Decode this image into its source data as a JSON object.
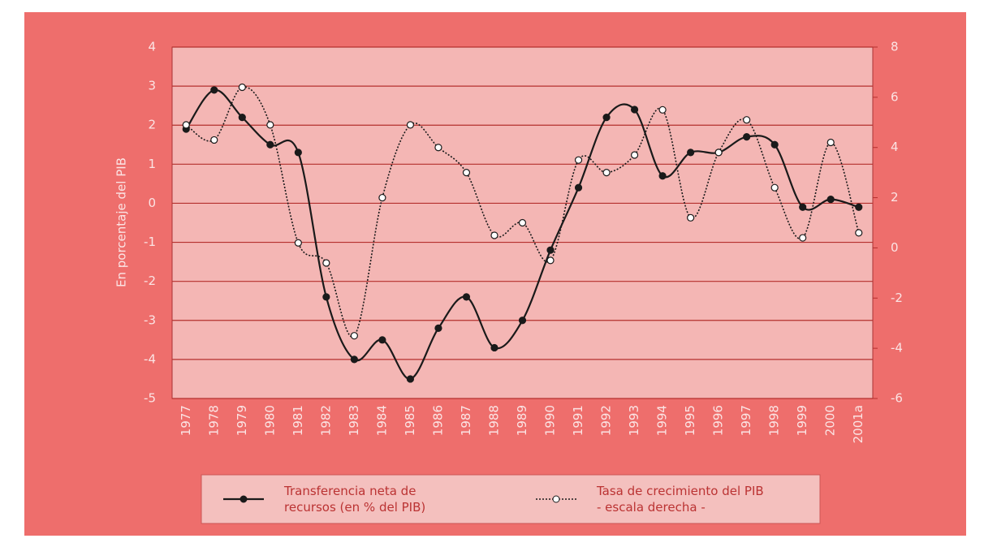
{
  "chart_data": {
    "type": "line",
    "ylabel": "En porcentaje del PIB",
    "categories": [
      "1977",
      "1978",
      "1979",
      "1980",
      "1981",
      "1982",
      "1983",
      "1984",
      "1985",
      "1986",
      "1987",
      "1988",
      "1989",
      "1990",
      "1991",
      "1992",
      "1993",
      "1994",
      "1995",
      "1996",
      "1997",
      "1998",
      "1999",
      "2000",
      "2001a"
    ],
    "series": [
      {
        "name": "Transferencia neta de recursos (en % del PIB)",
        "color": "#1a1a1a",
        "line_style": "solid",
        "marker": "filled",
        "values": [
          1.9,
          2.9,
          2.2,
          1.5,
          1.3,
          -2.4,
          -4.0,
          -3.5,
          -4.5,
          -3.2,
          -2.4,
          -3.7,
          -3.0,
          -1.2,
          0.4,
          2.2,
          2.4,
          0.7,
          1.3,
          1.3,
          1.7,
          1.5,
          -0.1,
          0.1,
          -0.1
        ]
      },
      {
        "name": "Tasa de crecimiento del PIB - escala derecha -",
        "color": "#1a1a1a",
        "line_style": "dotted",
        "marker": "open",
        "axis": "y2",
        "values": [
          4.9,
          4.3,
          6.4,
          4.9,
          0.2,
          -0.6,
          -3.5,
          2.0,
          4.9,
          4.0,
          3.0,
          0.5,
          1.0,
          -0.5,
          3.5,
          3.0,
          3.7,
          5.5,
          1.2,
          3.8,
          5.1,
          2.4,
          0.4,
          4.2,
          0.6
        ]
      }
    ],
    "ylim": [
      -5,
      4
    ],
    "yticks": [
      -5,
      -4,
      -3,
      -2,
      -1,
      0,
      1,
      2,
      3,
      4
    ],
    "y2lim": [
      -6,
      8
    ],
    "y2ticks": [
      -6,
      -4,
      -2,
      0,
      2,
      4,
      6,
      8
    ],
    "grid": true
  }
}
